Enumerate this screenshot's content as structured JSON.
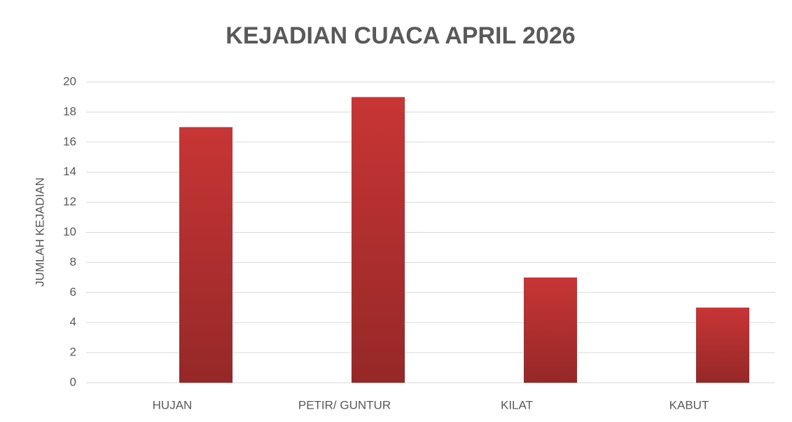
{
  "chart_data": {
    "type": "bar",
    "title": "KEJADIAN CUACA APRIL 2026",
    "y_label": "JUMLAH KEJADIAN",
    "categories": [
      "HUJAN",
      "PETIR/ GUNTUR",
      "KILAT",
      "KABUT"
    ],
    "values": [
      17,
      19,
      7,
      5
    ],
    "color": "#c83535",
    "ylim": [
      0,
      20
    ],
    "yticks": [
      0,
      2,
      4,
      6,
      8,
      10,
      12,
      14,
      16,
      18,
      20
    ],
    "grid": true
  }
}
